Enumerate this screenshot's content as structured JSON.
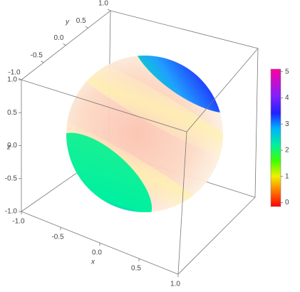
{
  "chart_data": {
    "type": "sphere3d",
    "xlabel": "x",
    "ylabel": "y",
    "zlabel": "z",
    "xlim": [
      -1,
      1
    ],
    "ylim": [
      -1,
      1
    ],
    "zlim": [
      -1,
      1
    ],
    "xticks": [
      {
        "value": -1,
        "label": "-1.0"
      },
      -0.5,
      {
        "value": 0,
        "label": "0.0"
      },
      0.5,
      {
        "value": 1,
        "label": "1.0"
      }
    ],
    "yticks": [
      {
        "value": -1,
        "label": "-1.0"
      },
      -0.5,
      {
        "value": 0,
        "label": "0.0"
      },
      0.5,
      {
        "value": 1,
        "label": "1.0"
      }
    ],
    "zticks": [
      {
        "value": -1,
        "label": "-1.0"
      },
      -0.5,
      {
        "value": 0,
        "label": "0.0"
      },
      0.5,
      {
        "value": 1,
        "label": "1.0"
      }
    ],
    "colorbar": {
      "clim": [
        -0.15,
        5.1
      ],
      "ticks": [
        0,
        1,
        2,
        3,
        4,
        5
      ]
    }
  }
}
